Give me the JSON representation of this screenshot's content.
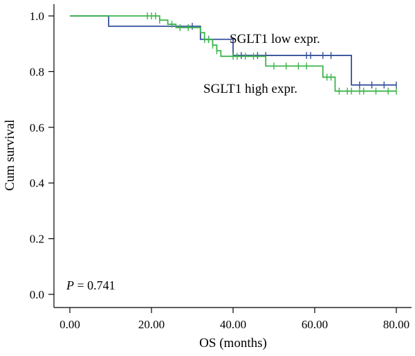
{
  "chart_data": {
    "type": "line",
    "subtype": "kaplan-meier",
    "title": "",
    "xlabel": "OS (months)",
    "ylabel": "Cum survival",
    "xlim": [
      0,
      80
    ],
    "ylim": [
      0,
      1.0
    ],
    "x_ticks": [
      "0.00",
      "20.00",
      "40.00",
      "60.00",
      "80.00"
    ],
    "x_tick_values": [
      0,
      20,
      40,
      60,
      80
    ],
    "y_ticks": [
      "0.0",
      "0.2",
      "0.4",
      "0.6",
      "0.8",
      "1.0"
    ],
    "y_tick_values": [
      0,
      0.2,
      0.4,
      0.6,
      0.8,
      1.0
    ],
    "grid": false,
    "annotation": {
      "p_symbol": "P",
      "p_text": " = 0.741"
    },
    "series": [
      {
        "name": "SGLT1 low expr.",
        "color": "#34509a",
        "steps": [
          [
            0,
            1.0
          ],
          [
            9.5,
            0.963
          ],
          [
            32,
            0.916
          ],
          [
            40,
            0.858
          ],
          [
            69,
            0.752
          ],
          [
            80,
            0.752
          ]
        ],
        "censor": [
          30,
          34,
          42,
          46,
          48,
          58,
          59,
          62,
          64,
          71,
          74,
          77,
          80
        ]
      },
      {
        "name": "SGLT1 high expr.",
        "color": "#3bb44a",
        "steps": [
          [
            0,
            1.0
          ],
          [
            22,
            0.985
          ],
          [
            24,
            0.97
          ],
          [
            26,
            0.958
          ],
          [
            32,
            0.94
          ],
          [
            33,
            0.915
          ],
          [
            35,
            0.895
          ],
          [
            36,
            0.875
          ],
          [
            37,
            0.855
          ],
          [
            48,
            0.82
          ],
          [
            62,
            0.78
          ],
          [
            65,
            0.73
          ],
          [
            80,
            0.73
          ]
        ],
        "censor": [
          19,
          20,
          21,
          22,
          25,
          27,
          29,
          33,
          34,
          35,
          36,
          40,
          41,
          43,
          45,
          50,
          53,
          56,
          58,
          63,
          64,
          66,
          68,
          69,
          71,
          72,
          75,
          78,
          80
        ]
      }
    ]
  }
}
